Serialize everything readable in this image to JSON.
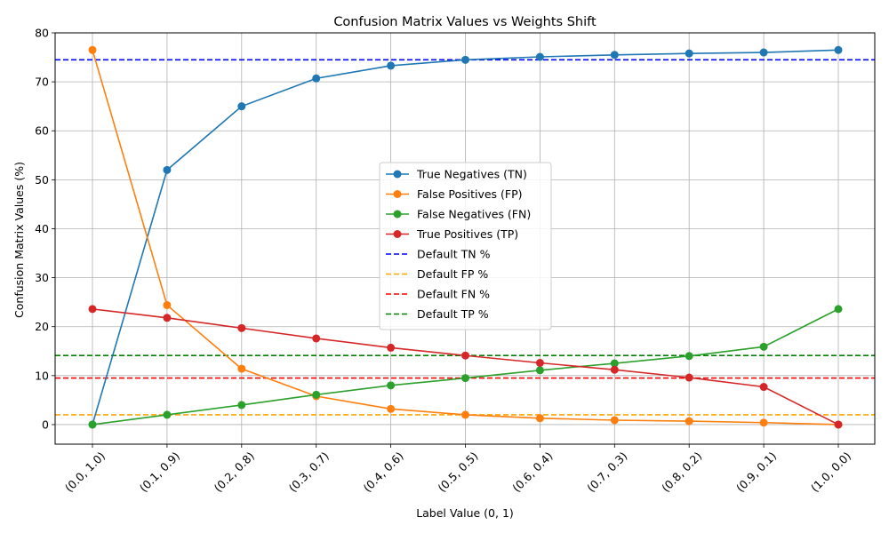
{
  "chart_data": {
    "type": "line",
    "title": "Confusion Matrix Values vs Weights Shift",
    "xlabel": "Label Value (0, 1)",
    "ylabel": "Confusion Matrix Values (%)",
    "categories": [
      "(0.0, 1.0)",
      "(0.1, 0.9)",
      "(0.2, 0.8)",
      "(0.3, 0.7)",
      "(0.4, 0.6)",
      "(0.5, 0.5)",
      "(0.6, 0.4)",
      "(0.7, 0.3)",
      "(0.8, 0.2)",
      "(0.9, 0.1)",
      "(1.0, 0.0)"
    ],
    "ylim": [
      -4,
      80
    ],
    "yticks": [
      0,
      10,
      20,
      30,
      40,
      50,
      60,
      70,
      80
    ],
    "grid": true,
    "legend_position": "center",
    "series": [
      {
        "name": "True Negatives (TN)",
        "color": "#1f77b4",
        "values": [
          0.0,
          52.0,
          65.0,
          70.7,
          73.3,
          74.5,
          75.1,
          75.5,
          75.8,
          76.0,
          76.5
        ]
      },
      {
        "name": "False Positives (FP)",
        "color": "#ff7f0e",
        "values": [
          76.5,
          24.4,
          11.4,
          5.8,
          3.2,
          2.0,
          1.3,
          0.9,
          0.7,
          0.4,
          0.0
        ]
      },
      {
        "name": "False Negatives (FN)",
        "color": "#2ca02c",
        "values": [
          0.0,
          2.0,
          4.0,
          6.1,
          8.0,
          9.5,
          11.1,
          12.5,
          14.0,
          15.9,
          23.6
        ]
      },
      {
        "name": "True Positives (TP)",
        "color": "#d62728",
        "values": [
          23.6,
          21.8,
          19.7,
          17.6,
          15.7,
          14.1,
          12.6,
          11.2,
          9.6,
          7.7,
          0.0
        ]
      }
    ],
    "reference_lines": [
      {
        "name": "Default TN %",
        "color": "#0000ff",
        "value": 74.5
      },
      {
        "name": "Default FP %",
        "color": "#ffa500",
        "value": 2.0
      },
      {
        "name": "Default FN %",
        "color": "#ff0000",
        "value": 9.5
      },
      {
        "name": "Default TP %",
        "color": "#008000",
        "value": 14.1
      }
    ]
  }
}
